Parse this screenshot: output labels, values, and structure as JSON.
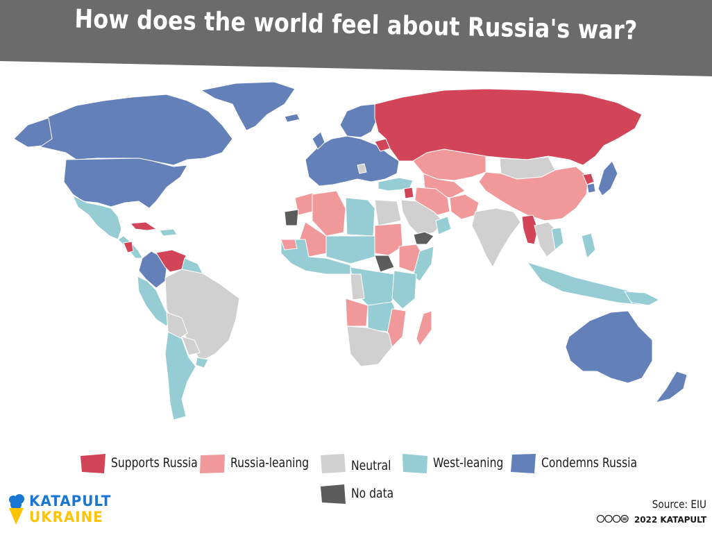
{
  "header": {
    "title": "How does the world feel about Russia's war?",
    "background": "#6b6b6b"
  },
  "legend": {
    "items": [
      {
        "key": "supports",
        "label": "Supports Russia",
        "color": "#d24558"
      },
      {
        "key": "leaning",
        "label": "Russia-leaning",
        "color": "#f1999a"
      },
      {
        "key": "neutral",
        "label": "Neutral",
        "color": "#d0d0d0"
      },
      {
        "key": "west",
        "label": "West-leaning",
        "color": "#96cdd5"
      },
      {
        "key": "condemns",
        "label": "Condemns Russia",
        "color": "#6480b8"
      },
      {
        "key": "nodata",
        "label": "No data",
        "color": "#5c5c5c"
      }
    ]
  },
  "footer": {
    "logo_line1": "KATAPULT",
    "logo_line2": "UKRAINE",
    "logo_icon": "ice-cream-icon",
    "source": "Source: EIU",
    "copyright": "2022 KATAPULT",
    "license_icons": "cc-by-nc-nd-icons"
  }
}
